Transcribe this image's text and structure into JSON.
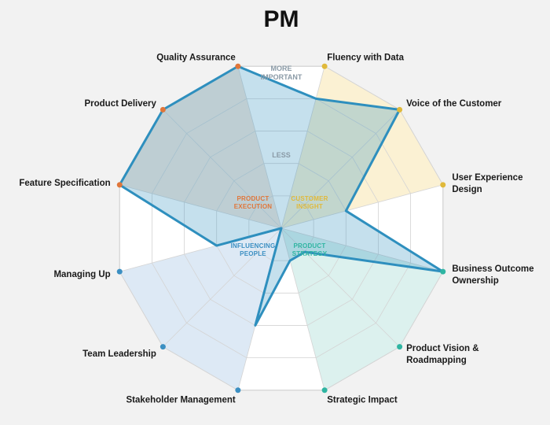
{
  "chart_data": {
    "type": "radar",
    "title": "PM",
    "scale": {
      "outer_label_lines": [
        "MORE",
        "IMPORTANT"
      ],
      "inner_label": "LESS",
      "levels": 5,
      "range": [
        0,
        5
      ]
    },
    "categories": [
      {
        "label_lines": [
          "Fluency with Data"
        ],
        "group": "insight"
      },
      {
        "label_lines": [
          "Voice of the Customer"
        ],
        "group": "insight"
      },
      {
        "label_lines": [
          "User Experience",
          "Design"
        ],
        "group": "insight"
      },
      {
        "label_lines": [
          "Business Outcome",
          "Ownership"
        ],
        "group": "strategy"
      },
      {
        "label_lines": [
          "Product Vision &",
          "Roadmapping"
        ],
        "group": "strategy"
      },
      {
        "label_lines": [
          "Strategic Impact"
        ],
        "group": "strategy"
      },
      {
        "label_lines": [
          "Stakeholder Management"
        ],
        "group": "influence"
      },
      {
        "label_lines": [
          "Team Leadership"
        ],
        "group": "influence"
      },
      {
        "label_lines": [
          "Managing Up"
        ],
        "group": "influence"
      },
      {
        "label_lines": [
          "Feature Specification"
        ],
        "group": "execution"
      },
      {
        "label_lines": [
          "Product Delivery"
        ],
        "group": "execution"
      },
      {
        "label_lines": [
          "Quality Assurance"
        ],
        "group": "execution"
      }
    ],
    "groups": [
      {
        "id": "insight",
        "label_lines": [
          "CUSTOMER",
          "INSIGHT"
        ],
        "color": "#e0b93a",
        "fill": "#fbf1d3"
      },
      {
        "id": "strategy",
        "label_lines": [
          "PRODUCT",
          "STRATEGY"
        ],
        "color": "#2fb5a2",
        "fill": "#dcf1ee"
      },
      {
        "id": "influence",
        "label_lines": [
          "INFLUENCING",
          "PEOPLE"
        ],
        "color": "#3b8fc2",
        "fill": "#dde9f5"
      },
      {
        "id": "execution",
        "label_lines": [
          "PRODUCT",
          "EXECUTION"
        ],
        "color": "#e0763a",
        "fill": "#f6e6dc"
      }
    ],
    "series": [
      {
        "values": [
          4,
          5,
          2,
          5,
          1,
          1,
          3,
          0,
          2,
          5,
          5,
          5
        ],
        "color": "#2e8fbe"
      }
    ]
  }
}
